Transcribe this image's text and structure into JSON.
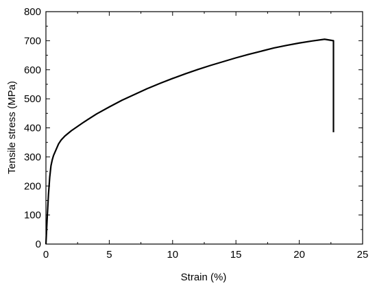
{
  "chart_data": {
    "type": "line",
    "title": "",
    "xlabel": "Strain (%)",
    "ylabel": "Tensile stress (MPa)",
    "xlim": [
      0,
      25
    ],
    "ylim": [
      0,
      800
    ],
    "xticks": [
      0,
      5,
      10,
      15,
      20,
      25
    ],
    "yticks": [
      0,
      100,
      200,
      300,
      400,
      500,
      600,
      700,
      800
    ],
    "xtick_labels": [
      "0",
      "5",
      "10",
      "15",
      "20",
      "25"
    ],
    "ytick_labels": [
      "0",
      "100",
      "200",
      "300",
      "400",
      "500",
      "600",
      "700",
      "800"
    ],
    "grid": false,
    "legend": "none",
    "series": [
      {
        "x": [
          0,
          0.1,
          0.2,
          0.3,
          0.4,
          0.5,
          0.6,
          0.8,
          1.0,
          1.2,
          1.5,
          2.0,
          2.5,
          3.0,
          4.0,
          5.0,
          6.0,
          7.0,
          8.0,
          9.0,
          10.0,
          11.0,
          12.0,
          13.0,
          14.0,
          15.0,
          16.0,
          17.0,
          18.0,
          19.0,
          20.0,
          21.0,
          22.0,
          22.7,
          22.7
        ],
        "y": [
          0,
          90,
          170,
          230,
          270,
          290,
          305,
          325,
          345,
          358,
          372,
          390,
          405,
          420,
          448,
          472,
          495,
          515,
          535,
          553,
          570,
          586,
          601,
          615,
          628,
          641,
          653,
          664,
          675,
          684,
          692,
          699,
          705,
          700,
          385
        ]
      }
    ],
    "colors": {
      "line": "#000000",
      "axes": "#000000",
      "background": "#ffffff"
    }
  }
}
